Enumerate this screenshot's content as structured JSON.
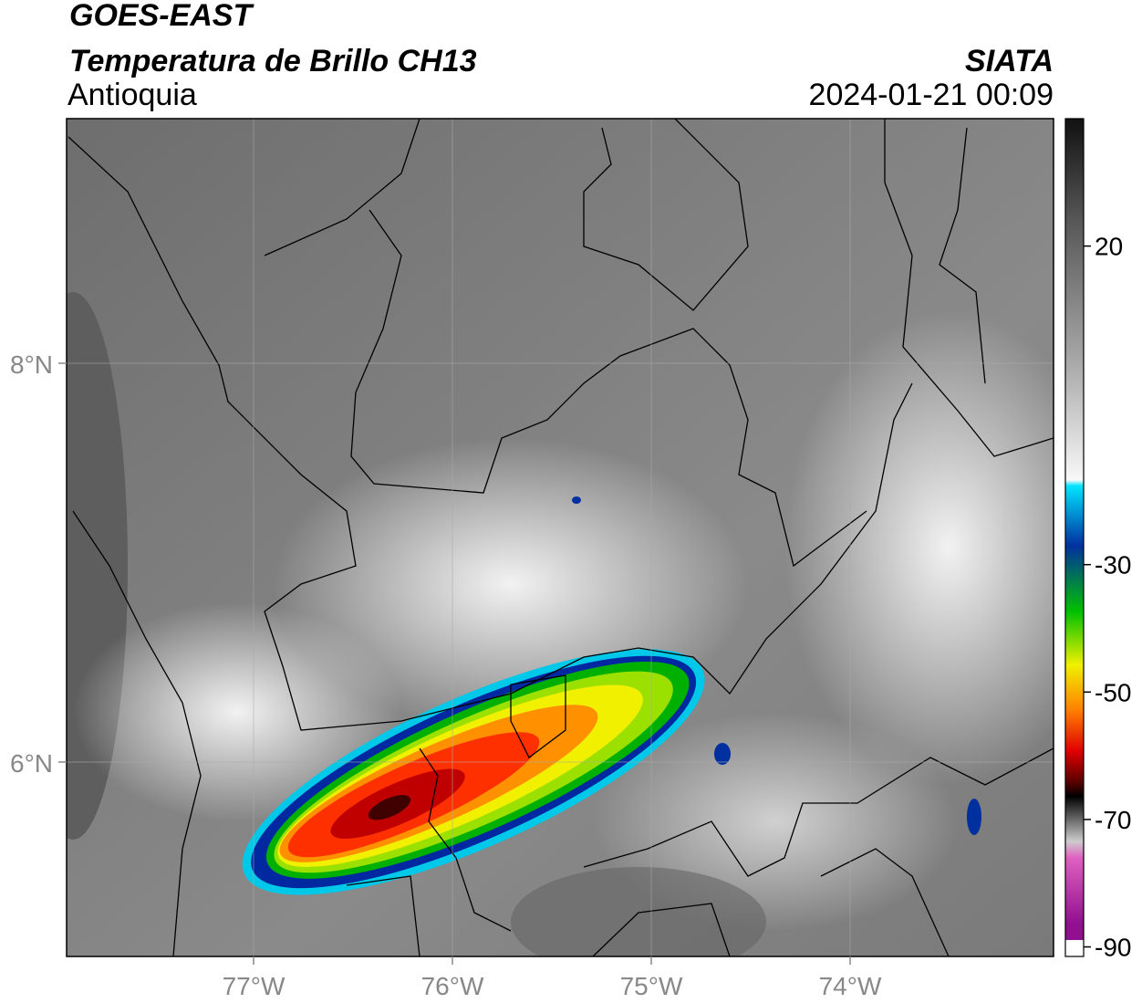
{
  "header": {
    "title": "GOES-EAST",
    "subtitle": "Temperatura de Brillo CH13",
    "region": "Antioquia",
    "source": "SIATA",
    "datetime": "2024-01-21 00:09"
  },
  "map": {
    "lat_labels": [
      "8°N",
      "6°N"
    ],
    "lon_labels": [
      "77°W",
      "76°W",
      "75°W",
      "74°W"
    ]
  },
  "colorbar": {
    "lim": [
      -91.5,
      40
    ],
    "ticks": [
      20,
      -30,
      -50,
      -70,
      -90
    ]
  }
}
